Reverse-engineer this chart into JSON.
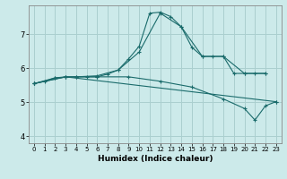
{
  "title": "",
  "xlabel": "Humidex (Indice chaleur)",
  "bg_color": "#cceaea",
  "grid_color": "#aacfcf",
  "line_color": "#1a6b6b",
  "xlim": [
    -0.5,
    23.5
  ],
  "ylim": [
    3.8,
    7.85
  ],
  "xticks": [
    0,
    1,
    2,
    3,
    4,
    5,
    6,
    7,
    8,
    9,
    10,
    11,
    12,
    13,
    14,
    15,
    16,
    17,
    18,
    19,
    20,
    21,
    22,
    23
  ],
  "yticks": [
    4,
    5,
    6,
    7
  ],
  "lines": [
    {
      "x": [
        0,
        1,
        2,
        3,
        4,
        5,
        6,
        7,
        8,
        9,
        10,
        11,
        12,
        13,
        14,
        15,
        16,
        17,
        18,
        19,
        20,
        21,
        22
      ],
      "y": [
        5.55,
        5.62,
        5.72,
        5.75,
        5.75,
        5.75,
        5.75,
        5.83,
        5.95,
        6.28,
        6.65,
        7.62,
        7.65,
        7.52,
        7.22,
        6.62,
        6.35,
        6.35,
        6.35,
        5.85,
        5.85,
        5.85,
        5.85
      ]
    },
    {
      "x": [
        0,
        2,
        4,
        6,
        8,
        10,
        12,
        14,
        16,
        18,
        20,
        22
      ],
      "y": [
        5.55,
        5.72,
        5.75,
        5.78,
        5.95,
        6.48,
        7.62,
        7.22,
        6.35,
        6.35,
        5.85,
        5.85
      ]
    },
    {
      "x": [
        0,
        3,
        6,
        9,
        12,
        15,
        18,
        20,
        21,
        22,
        23
      ],
      "y": [
        5.55,
        5.75,
        5.75,
        5.75,
        5.62,
        5.45,
        5.1,
        4.82,
        4.48,
        4.9,
        5.02
      ]
    },
    {
      "x": [
        0,
        3,
        23
      ],
      "y": [
        5.55,
        5.75,
        5.02
      ]
    }
  ]
}
